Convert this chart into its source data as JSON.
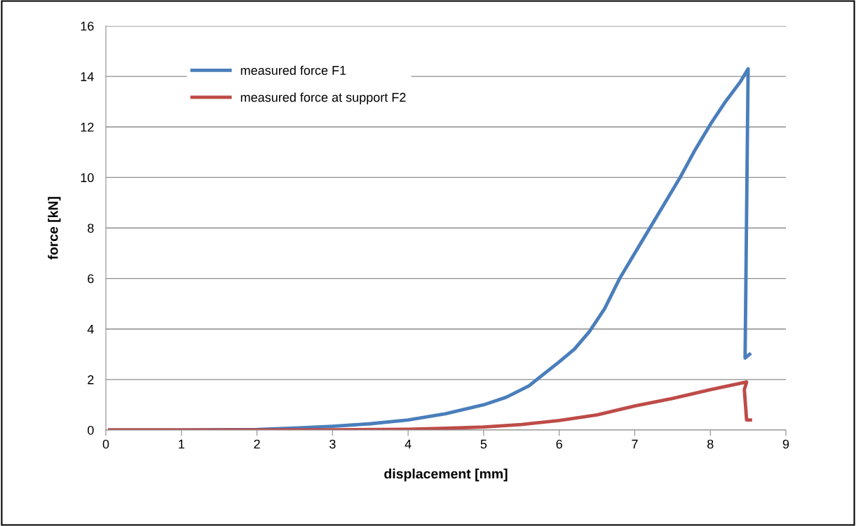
{
  "chart_data": {
    "type": "line",
    "xlabel": "displacement [mm]",
    "ylabel": "force [kN]",
    "xlim": [
      0,
      9
    ],
    "xticks": [
      0,
      1,
      2,
      3,
      4,
      5,
      6,
      7,
      8,
      9
    ],
    "ylim": [
      0,
      16
    ],
    "yticks": [
      0,
      2,
      4,
      6,
      8,
      10,
      12,
      14,
      16
    ],
    "grid": "y",
    "legend": "top left",
    "marker": "none",
    "line_style": "solid",
    "series": [
      {
        "name": "measured force F1",
        "color": "#4a7ebb",
        "x": [
          0.05,
          1,
          2,
          2.5,
          3,
          3.5,
          4,
          4.5,
          5,
          5.3,
          5.6,
          6,
          6.2,
          6.4,
          6.6,
          6.8,
          7,
          7.2,
          7.4,
          7.6,
          7.8,
          8,
          8.2,
          8.4,
          8.5,
          8.46,
          8.48,
          8.52
        ],
        "values": [
          0,
          0,
          0.02,
          0.08,
          0.15,
          0.25,
          0.4,
          0.65,
          1.0,
          1.3,
          1.75,
          2.7,
          3.2,
          3.9,
          4.8,
          6.0,
          7.0,
          8.0,
          9.0,
          10.0,
          11.1,
          12.1,
          13.0,
          13.8,
          14.3,
          2.85,
          2.9,
          3.0
        ]
      },
      {
        "name": "measured force at support F2",
        "color": "#be4b48",
        "x": [
          0.05,
          1,
          2,
          3,
          4,
          4.5,
          5,
          5.5,
          6,
          6.5,
          7,
          7.5,
          8,
          8.48,
          8.45,
          8.48,
          8.53
        ],
        "values": [
          0,
          0,
          0,
          0.01,
          0.03,
          0.07,
          0.12,
          0.22,
          0.38,
          0.6,
          0.95,
          1.25,
          1.6,
          1.9,
          1.6,
          0.4,
          0.4
        ]
      }
    ]
  }
}
